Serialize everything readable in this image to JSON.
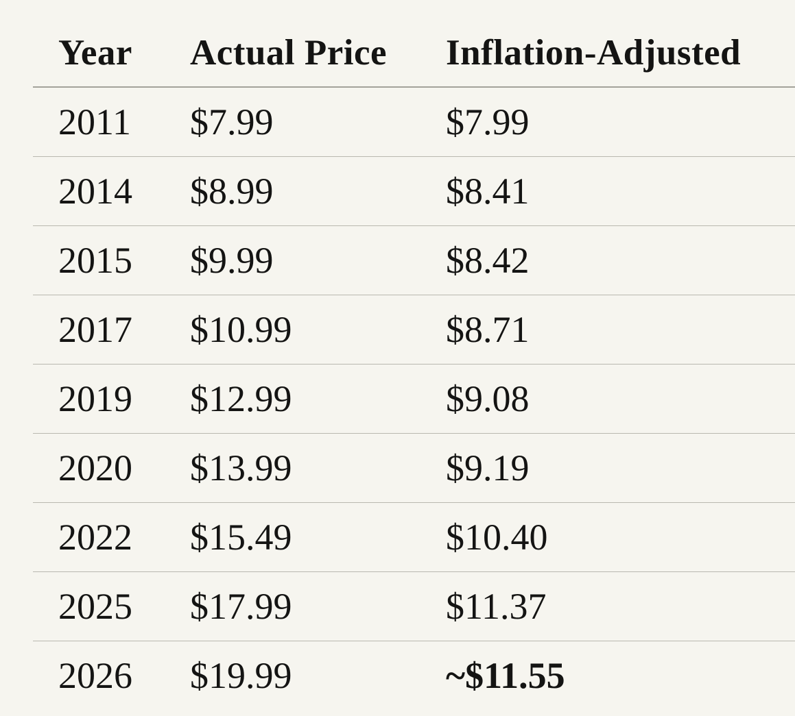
{
  "table": {
    "columns": [
      {
        "key": "year",
        "label": "Year"
      },
      {
        "key": "actual",
        "label": "Actual Price"
      },
      {
        "key": "adjusted",
        "label": "Inflation-Adjusted"
      }
    ],
    "rows": [
      {
        "year": "2011",
        "actual": "$7.99",
        "adjusted": "$7.99",
        "adjusted_bold": false
      },
      {
        "year": "2014",
        "actual": "$8.99",
        "adjusted": "$8.41",
        "adjusted_bold": false
      },
      {
        "year": "2015",
        "actual": "$9.99",
        "adjusted": "$8.42",
        "adjusted_bold": false
      },
      {
        "year": "2017",
        "actual": "$10.99",
        "adjusted": "$8.71",
        "adjusted_bold": false
      },
      {
        "year": "2019",
        "actual": "$12.99",
        "adjusted": "$9.08",
        "adjusted_bold": false
      },
      {
        "year": "2020",
        "actual": "$13.99",
        "adjusted": "$9.19",
        "adjusted_bold": false
      },
      {
        "year": "2022",
        "actual": "$15.49",
        "adjusted": "$10.40",
        "adjusted_bold": false
      },
      {
        "year": "2025",
        "actual": "$17.99",
        "adjusted": "$11.37",
        "adjusted_bold": false
      },
      {
        "year": "2026",
        "actual": "$19.99",
        "adjusted": "~$11.55",
        "adjusted_bold": true
      }
    ]
  },
  "colors": {
    "background": "#f6f5ef",
    "text": "#141413",
    "header_rule": "#a3a29a",
    "row_rule": "#b9b8af"
  }
}
